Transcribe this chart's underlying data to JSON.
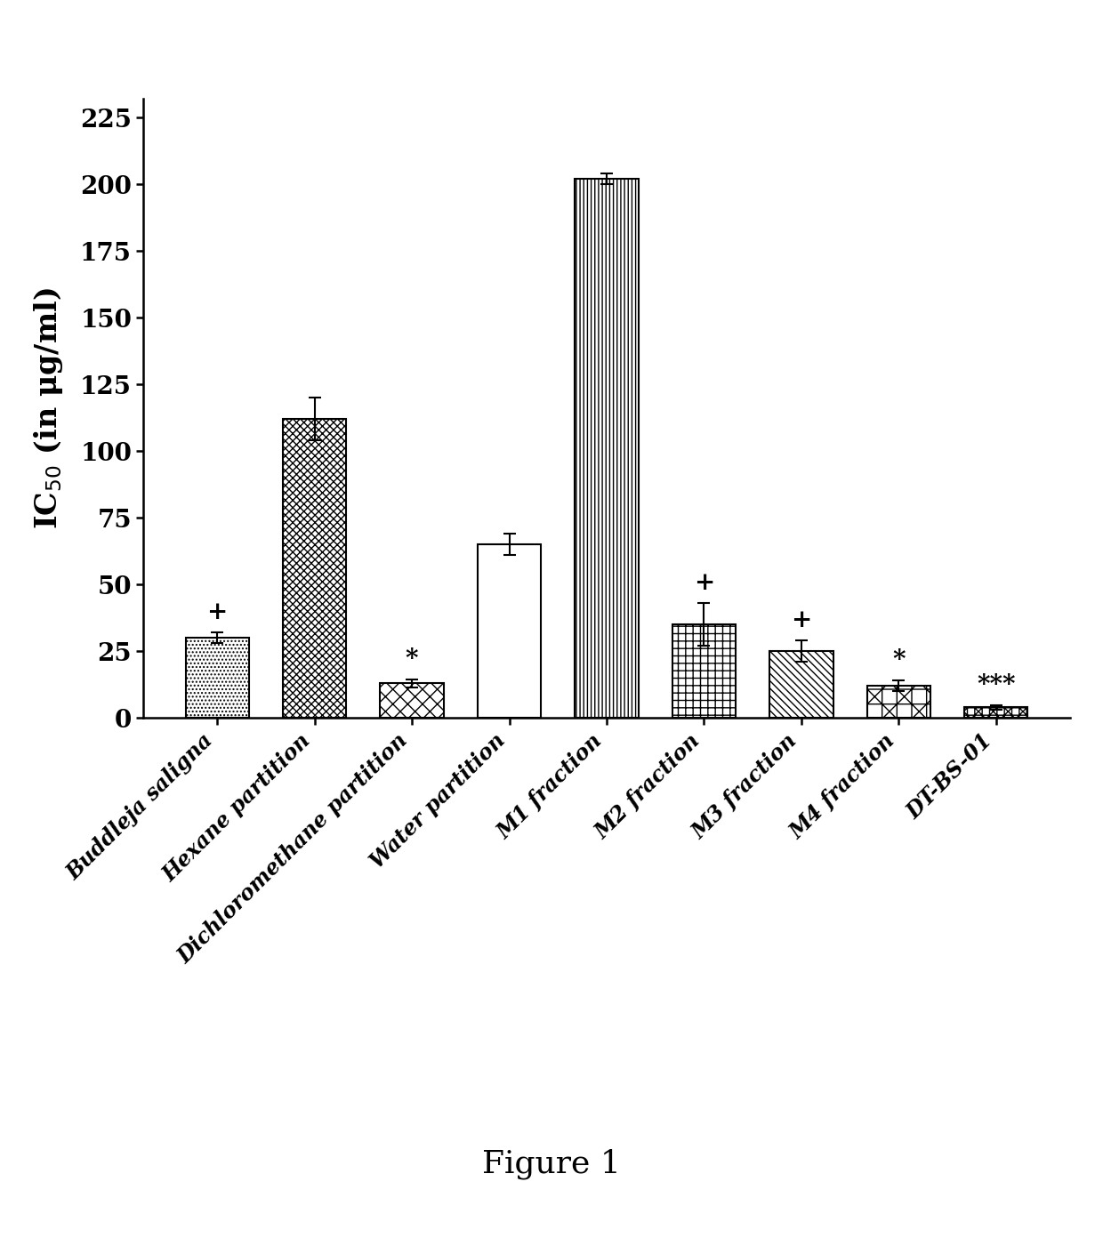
{
  "categories": [
    "Buddleja saligna",
    "Hexane partition",
    "Dichloromethane partition",
    "Water partition",
    "M1 fraction",
    "M2 fraction",
    "M3 fraction",
    "M4 fraction",
    "DT-BS-01"
  ],
  "values": [
    30,
    112,
    13,
    65,
    202,
    35,
    25,
    12,
    4
  ],
  "errors": [
    2,
    8,
    1.5,
    4,
    2,
    8,
    4,
    2,
    0.8
  ],
  "annotations": [
    "+",
    "",
    "*",
    "",
    "",
    "+",
    "+",
    "*",
    "***"
  ],
  "ylabel": "IC$_{50}$ (in μg/ml)",
  "ylim": [
    0,
    232
  ],
  "yticks": [
    0,
    25,
    50,
    75,
    100,
    125,
    150,
    175,
    200,
    225
  ],
  "figure_caption": "Figure 1",
  "background_color": "#ffffff",
  "annotation_fontsize": 20,
  "ylabel_fontsize": 24,
  "ytick_fontsize": 20,
  "xtick_fontsize": 17,
  "caption_fontsize": 26,
  "bar_width": 0.65,
  "hatch_patterns": [
    "....",
    "xxxx",
    "XX",
    "====",
    "||||",
    "++",
    "\\\\\\\\",
    "x+",
    "x+x+"
  ]
}
